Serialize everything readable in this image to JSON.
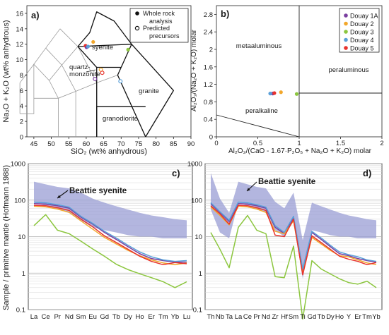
{
  "chart_data": [
    {
      "panel": "a)",
      "type": "scatter",
      "xlabel": "SiO₂ (wt% anhydrous)",
      "ylabel": "Na₂O + K₂O (wt% anhydrous)",
      "xlim": [
        43,
        90
      ],
      "ylim": [
        0,
        17
      ],
      "xticks": [
        "45",
        "50",
        "55",
        "60",
        "65",
        "70",
        "75",
        "80",
        "85",
        "90"
      ],
      "yticks": [
        "0",
        "2",
        "4",
        "6",
        "8",
        "10",
        "12",
        "14",
        "16"
      ],
      "field_labels": [
        "syenite",
        "quartz-\nmonzonite",
        "granite",
        "granodiorite"
      ],
      "legend": [
        {
          "label": "Whole rock\nanalysis",
          "marker": "filled"
        },
        {
          "label": "Predicted\nprecursors",
          "marker": "open"
        }
      ],
      "whole_rock_points": [
        {
          "x": 59.8,
          "y": 11.8,
          "color": "#e8322d"
        },
        {
          "x": 60.1,
          "y": 11.6,
          "color": "#7a3fa0"
        },
        {
          "x": 60.5,
          "y": 11.7,
          "color": "#5aa0d8"
        },
        {
          "x": 62.0,
          "y": 12.3,
          "color": "#f2a72b"
        },
        {
          "x": 72.0,
          "y": 11.3,
          "color": "#8cc63f"
        }
      ],
      "precursor_points": [
        {
          "x": 62.5,
          "y": 7.5,
          "color": "#7a3fa0"
        },
        {
          "x": 64.2,
          "y": 8.7,
          "color": "#f2a72b"
        },
        {
          "x": 64.6,
          "y": 8.3,
          "color": "#e8322d"
        },
        {
          "x": 69.8,
          "y": 7.2,
          "color": "#5aa0d8"
        }
      ]
    },
    {
      "panel": "b)",
      "type": "scatter",
      "xlabel": "Al₂O₃/(CaO - 1.67·P₂O₅ + Na₂O + K₂O) molar",
      "ylabel": "Al₂O₃/(Na₂O + K₂O) molar",
      "xlim": [
        0,
        2
      ],
      "ylim": [
        0,
        3
      ],
      "xticks": [
        "0",
        "0.5",
        "1",
        "1.5",
        "2"
      ],
      "yticks": [
        "0",
        "0.4",
        "0.8",
        "1.2",
        "1.6",
        "2",
        "2.4",
        "2.8"
      ],
      "field_labels": [
        "metaaluminous",
        "peraluminous",
        "peralkaline"
      ],
      "series": [
        {
          "name": "Douay 1A",
          "color": "#7a3fa0",
          "x": 0.68,
          "y": 0.99
        },
        {
          "name": "Douay 2",
          "color": "#f2a72b",
          "x": 0.78,
          "y": 1.02
        },
        {
          "name": "Douay 3",
          "color": "#8cc63f",
          "x": 0.97,
          "y": 0.98
        },
        {
          "name": "Douay 4",
          "color": "#5aa0d8",
          "x": 0.65,
          "y": 0.99
        },
        {
          "name": "Douay 5",
          "color": "#e8322d",
          "x": 0.7,
          "y": 1.0
        }
      ]
    },
    {
      "panel": "c)",
      "type": "line",
      "yscale": "log",
      "ylim": [
        0.1,
        1000
      ],
      "ylabel": "Sample / primitive mantle (Hofmann 1988)",
      "yticks": [
        "0.1",
        "1",
        "10",
        "100",
        "1000"
      ],
      "categories": [
        "La",
        "Ce",
        "Pr",
        "Nd",
        "Sm",
        "Eu",
        "Gd",
        "Tb",
        "Dy",
        "Ho",
        "Er",
        "Tm",
        "Yb",
        "Lu"
      ],
      "band_label": "Beattie syenite",
      "band_color": "#9a9ed4",
      "band_lower": [
        85,
        70,
        57,
        45,
        28,
        18,
        15,
        13,
        11,
        10,
        10,
        9,
        9,
        9
      ],
      "band_upper": [
        320,
        270,
        230,
        210,
        160,
        110,
        85,
        68,
        55,
        45,
        38,
        34,
        30,
        28
      ],
      "series": [
        {
          "name": "Douay 1A",
          "color": "#7a3fa0",
          "values": [
            80,
            78,
            70,
            60,
            34,
            22,
            13,
            8.4,
            5.3,
            3.4,
            2.5,
            2.2,
            2.0,
            2.0
          ]
        },
        {
          "name": "Douay 2",
          "color": "#f2a72b",
          "values": [
            68,
            65,
            57,
            46,
            27,
            16,
            9.5,
            6.3,
            4.2,
            3.0,
            2.3,
            1.9,
            1.7,
            1.9
          ]
        },
        {
          "name": "Douay 3",
          "color": "#8cc63f",
          "values": [
            20,
            40,
            15,
            12,
            7.5,
            4.6,
            2.9,
            1.75,
            1.25,
            0.96,
            0.75,
            0.58,
            0.4,
            0.58
          ]
        },
        {
          "name": "Douay 4",
          "color": "#5aa0d8",
          "values": [
            88,
            84,
            75,
            64,
            36,
            23,
            14,
            9.2,
            5.8,
            3.8,
            2.8,
            2.3,
            2.1,
            2.2
          ]
        },
        {
          "name": "Douay 5",
          "color": "#e8322d",
          "values": [
            72,
            70,
            62,
            52,
            30,
            18.5,
            10.5,
            6.9,
            4.5,
            2.9,
            2.1,
            1.7,
            1.95,
            1.8
          ]
        }
      ]
    },
    {
      "panel": "d)",
      "type": "line",
      "yscale": "log",
      "ylim": [
        0.1,
        1000
      ],
      "yticks": [
        "0.1",
        "1",
        "10",
        "100",
        "1000"
      ],
      "categories": [
        "Th",
        "Nb",
        "Ta",
        "La",
        "Ce",
        "Pr",
        "Nd",
        "Zr",
        "Hf",
        "Sm",
        "Ti",
        "Gd",
        "Tb",
        "Dy",
        "Ho",
        "Y",
        "Er",
        "Tm",
        "Yb"
      ],
      "band_label": "Beattie syenite",
      "band_color": "#9a9ed4",
      "band_lower": [
        55,
        13,
        9,
        85,
        70,
        57,
        45,
        15,
        10,
        28,
        0.7,
        15,
        13,
        11,
        10,
        10,
        9,
        9,
        9
      ],
      "band_upper": [
        550,
        110,
        45,
        320,
        270,
        230,
        210,
        90,
        60,
        160,
        8,
        85,
        68,
        55,
        45,
        38,
        34,
        30,
        28
      ],
      "series": [
        {
          "name": "Douay 1A",
          "color": "#7a3fa0",
          "values": [
            80,
            46,
            26,
            80,
            78,
            70,
            60,
            18,
            12,
            34,
            1.2,
            13,
            8.4,
            5.3,
            3.4,
            3.0,
            2.5,
            2.2,
            2.0
          ]
        },
        {
          "name": "Douay 2",
          "color": "#f2a72b",
          "values": [
            65,
            38,
            21,
            68,
            65,
            57,
            46,
            14,
            12,
            27,
            1.0,
            9.5,
            6.3,
            4.2,
            3.0,
            2.8,
            2.3,
            1.9,
            1.7
          ]
        },
        {
          "name": "Douay 3",
          "color": "#8cc63f",
          "values": [
            13,
            4.5,
            1.4,
            18,
            38,
            15,
            12,
            0.8,
            0.75,
            5.5,
            0.055,
            2.2,
            1.3,
            0.95,
            0.7,
            0.55,
            0.5,
            0.6,
            0.4
          ]
        },
        {
          "name": "Douay 4",
          "color": "#5aa0d8",
          "values": [
            85,
            48,
            28,
            88,
            84,
            75,
            64,
            20,
            13,
            36,
            1.3,
            14,
            9.2,
            5.8,
            3.8,
            3.2,
            2.8,
            2.3,
            2.1
          ]
        },
        {
          "name": "Douay 5",
          "color": "#e8322d",
          "values": [
            70,
            42,
            22,
            72,
            70,
            62,
            52,
            11,
            10,
            30,
            0.9,
            10.5,
            6.9,
            4.5,
            2.9,
            2.4,
            2.1,
            1.7,
            1.95
          ]
        }
      ]
    }
  ]
}
